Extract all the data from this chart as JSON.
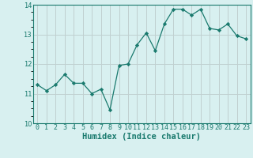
{
  "x": [
    0,
    1,
    2,
    3,
    4,
    5,
    6,
    7,
    8,
    9,
    10,
    11,
    12,
    13,
    14,
    15,
    16,
    17,
    18,
    19,
    20,
    21,
    22,
    23
  ],
  "y": [
    11.3,
    11.1,
    11.3,
    11.65,
    11.35,
    11.35,
    11.0,
    11.15,
    10.45,
    11.95,
    12.0,
    12.65,
    13.05,
    12.45,
    13.35,
    13.85,
    13.85,
    13.65,
    13.85,
    13.2,
    13.15,
    13.35,
    12.95,
    12.85
  ],
  "line_color": "#1a7a6e",
  "marker": "D",
  "marker_size": 2.2,
  "linewidth": 0.9,
  "bg_color": "#d8f0f0",
  "grid_color_major": "#c0d0d0",
  "grid_color_minor": "#d0e4e4",
  "xlabel": "Humidex (Indice chaleur)",
  "ylim": [
    10,
    14
  ],
  "xlim": [
    -0.5,
    23.5
  ],
  "yticks": [
    10,
    11,
    12,
    13,
    14
  ],
  "xticks": [
    0,
    1,
    2,
    3,
    4,
    5,
    6,
    7,
    8,
    9,
    10,
    11,
    12,
    13,
    14,
    15,
    16,
    17,
    18,
    19,
    20,
    21,
    22,
    23
  ],
  "tick_fontsize": 6,
  "xlabel_fontsize": 7.5
}
